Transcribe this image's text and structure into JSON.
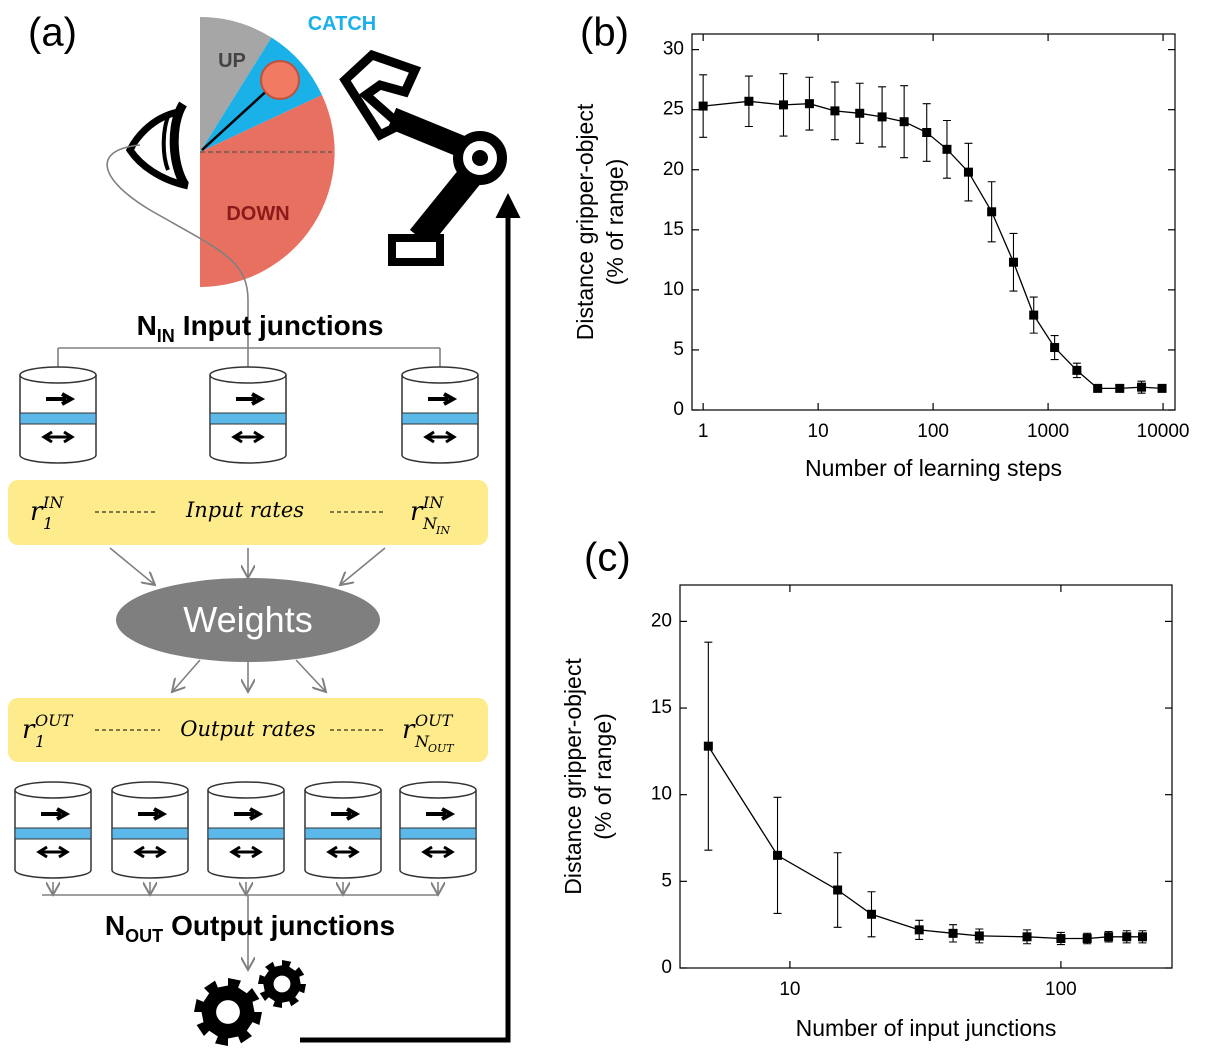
{
  "diagram": {
    "label": "(a)",
    "regions": {
      "up": "UP",
      "catch": "CATCH",
      "down": "DOWN"
    },
    "input_junctions": {
      "symbol": "N",
      "sub": "IN",
      "text": "Input junctions"
    },
    "input_rates": {
      "first": {
        "base": "r",
        "sub": "1",
        "sup": "IN"
      },
      "text": "Input rates",
      "last": {
        "base": "r",
        "sub": "N",
        "subsub": "IN",
        "sup": "IN"
      }
    },
    "weights": "Weights",
    "output_rates": {
      "first": {
        "base": "r",
        "sub": "1",
        "sup": "OUT"
      },
      "text": "Output rates",
      "last": {
        "base": "r",
        "sub": "N",
        "subsub": "OUT",
        "sup": "OUT"
      }
    },
    "output_junctions": {
      "symbol": "N",
      "sub": "OUT",
      "text": "Output junctions"
    }
  },
  "chart_data": [
    {
      "type": "line",
      "panel_label": "(b)",
      "x_label": "Number of learning steps",
      "y_label": [
        "Distance gripper-object",
        "(% of range)"
      ],
      "x": [
        1,
        2.5,
        5,
        8.4,
        14,
        23,
        36,
        56,
        88,
        132,
        203,
        323,
        500,
        750,
        1140,
        1780,
        2700,
        4200,
        6500,
        9800
      ],
      "values": [
        25.3,
        25.7,
        25.4,
        25.5,
        24.9,
        24.7,
        24.4,
        24.0,
        23.1,
        21.7,
        19.8,
        16.5,
        12.3,
        7.9,
        5.2,
        3.3,
        1.8,
        1.8,
        1.9,
        1.8
      ],
      "errors": [
        2.6,
        2.1,
        2.6,
        2.2,
        2.4,
        2.5,
        2.5,
        3.0,
        2.4,
        2.4,
        2.4,
        2.5,
        2.4,
        1.5,
        1.0,
        0.6,
        0.3,
        0.3,
        0.5,
        0.3
      ],
      "color": "#000000",
      "xscale": "log",
      "xlim": [
        0.8,
        12700
      ],
      "xticks": [
        1,
        10,
        100,
        1000,
        10000
      ],
      "ylim": [
        0,
        31.3
      ],
      "yticks": [
        0,
        5,
        10,
        15,
        20,
        25,
        30
      ]
    },
    {
      "type": "line",
      "panel_label": "(c)",
      "x_label": "Number of input junctions",
      "y_label": [
        "Distance gripper-object",
        "(% of range)"
      ],
      "x": [
        5,
        9,
        15,
        20,
        30,
        40,
        50,
        75,
        100,
        125,
        150,
        175,
        200
      ],
      "values": [
        12.8,
        6.5,
        4.5,
        3.1,
        2.2,
        2.0,
        1.85,
        1.8,
        1.7,
        1.7,
        1.8,
        1.8,
        1.8
      ],
      "errors": [
        6.0,
        3.35,
        2.15,
        1.3,
        0.55,
        0.5,
        0.4,
        0.4,
        0.35,
        0.3,
        0.3,
        0.35,
        0.35
      ],
      "color": "#000000",
      "xscale": "log",
      "xlim": [
        3.93,
        257
      ],
      "xticks": [
        10,
        100
      ],
      "ylim": [
        0,
        22.1
      ],
      "yticks": [
        0,
        5,
        10,
        15,
        20
      ]
    }
  ]
}
